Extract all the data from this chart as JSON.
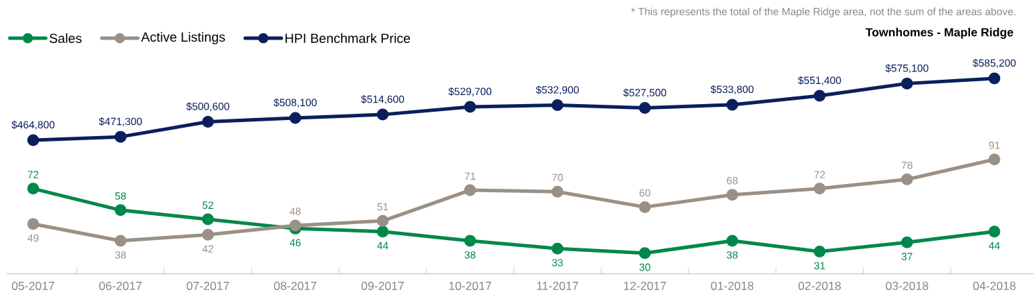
{
  "chart_data": [
    {
      "type": "line",
      "title": "Townhomes - Maple Ridge",
      "annotations": [
        "* This represents the total of the Maple Ridge area, not the sum of the areas above."
      ],
      "categories": [
        null,
        null,
        null,
        null,
        null,
        null,
        null,
        null,
        null,
        null,
        null,
        null
      ],
      "series": [
        {
          "name": "HPI Benchmark Price",
          "color": "#0a1f5c",
          "values": [
            464800,
            471300,
            500600,
            508100,
            514600,
            529700,
            532900,
            527500,
            533800,
            551400,
            575100,
            585200
          ],
          "value_labels": [
            "$464,800",
            "$471,300",
            "$500,600",
            "$508,100",
            "$514,600",
            "$529,700",
            "$532,900",
            "$527,500",
            "$533,800",
            "$551,400",
            "$575,100",
            "$585,200"
          ]
        }
      ],
      "tick_labels": false,
      "legend": "top left",
      "marker": "circle",
      "line_style": "solid"
    },
    {
      "type": "line",
      "categories": [
        "05-2017",
        "06-2017",
        "07-2017",
        "08-2017",
        "09-2017",
        "10-2017",
        "11-2017",
        "12-2017",
        "01-2018",
        "02-2018",
        "03-2018",
        "04-2018"
      ],
      "series": [
        {
          "name": "Sales",
          "color": "#00884a",
          "values": [
            72,
            58,
            52,
            46,
            44,
            38,
            33,
            30,
            38,
            31,
            37,
            44
          ],
          "value_labels": [
            "72",
            "58",
            "52",
            "46",
            "44",
            "38",
            "33",
            "30",
            "38",
            "31",
            "37",
            "44"
          ]
        },
        {
          "name": "Active Listings",
          "color": "#9b9085",
          "values": [
            49,
            38,
            42,
            48,
            51,
            71,
            70,
            60,
            68,
            72,
            78,
            91
          ],
          "value_labels": [
            "49",
            "38",
            "42",
            "48",
            "51",
            "71",
            "70",
            "60",
            "68",
            "72",
            "78",
            "91"
          ]
        }
      ],
      "tick_labels": "x",
      "legend": "top left",
      "marker": "circle",
      "line_style": "solid"
    }
  ]
}
